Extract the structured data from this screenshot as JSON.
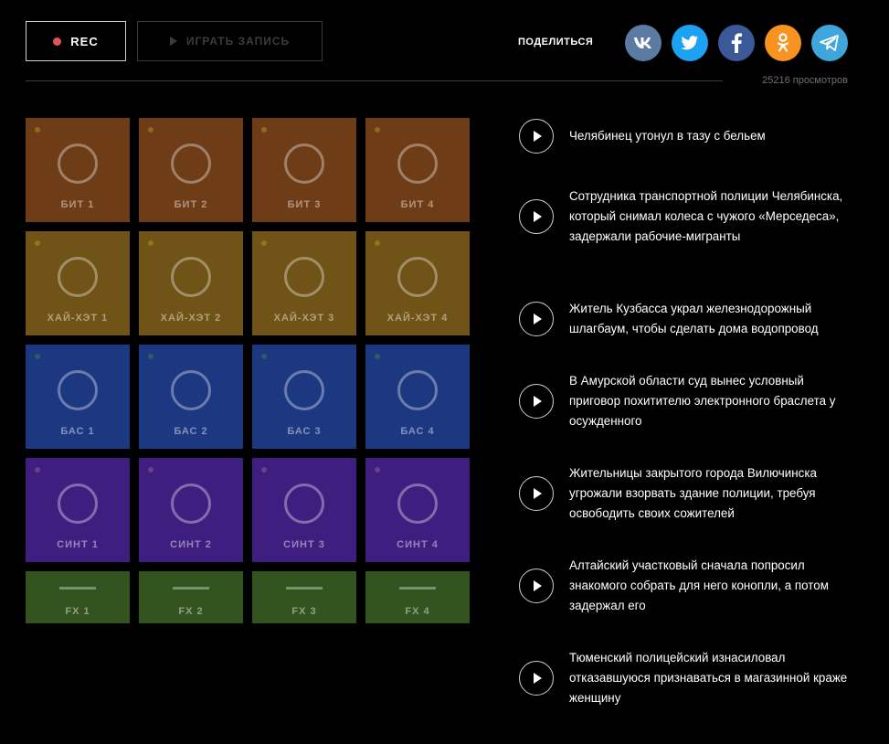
{
  "toolbar": {
    "rec_label": "REC",
    "play_label": "ИГРАТЬ ЗАПИСЬ",
    "share_label": "ПОДЕЛИТЬСЯ",
    "views": "25216 просмотров"
  },
  "socials": [
    {
      "name": "vk-icon",
      "color": "#5b7ba3"
    },
    {
      "name": "twitter-icon",
      "color": "#1da1f2"
    },
    {
      "name": "facebook-icon",
      "color": "#3b5998"
    },
    {
      "name": "odnoklassniki-icon",
      "color": "#f7931e"
    },
    {
      "name": "telegram-icon",
      "color": "#3fa6db"
    }
  ],
  "pads": {
    "row1": [
      "БИТ 1",
      "БИТ 2",
      "БИТ 3",
      "БИТ 4"
    ],
    "row2": [
      "ХАЙ-ХЭТ 1",
      "ХАЙ-ХЭТ 2",
      "ХАЙ-ХЭТ 3",
      "ХАЙ-ХЭТ 4"
    ],
    "row3": [
      "БАС 1",
      "БАС 2",
      "БАС 3",
      "БАС 4"
    ],
    "row4": [
      "СИНТ 1",
      "СИНТ 2",
      "СИНТ 3",
      "СИНТ 4"
    ],
    "row5": [
      "FX 1",
      "FX 2",
      "FX 3",
      "FX 4"
    ]
  },
  "colors": {
    "beat": "#6e3d18",
    "hihat": "#6f5317",
    "bass": "#1c3880",
    "synth": "#3e1f80",
    "fx": "#34541f"
  },
  "news": [
    "Челябинец утонул в тазу с бельем",
    "Сотрудника транспортной полиции Челябинска, который снимал колеса с чужого «Мерседеса», задержали рабочие-мигранты",
    "Житель Кузбасса украл железнодорожный шлагбаум, чтобы сделать дома водопровод",
    "В Амурской области суд вынес условный приговор похитителю электронного браслета у осужденного",
    "Жительницы закрытого города Вилючинска угрожали взорвать здание полиции, требуя освободить своих сожителей",
    "Алтайский участковый сначала попросил знакомого собрать для него конопли, а потом задержал его",
    "Тюменский полицейский изнасиловал отказавшуюся признаваться в магазинной краже женщину"
  ]
}
